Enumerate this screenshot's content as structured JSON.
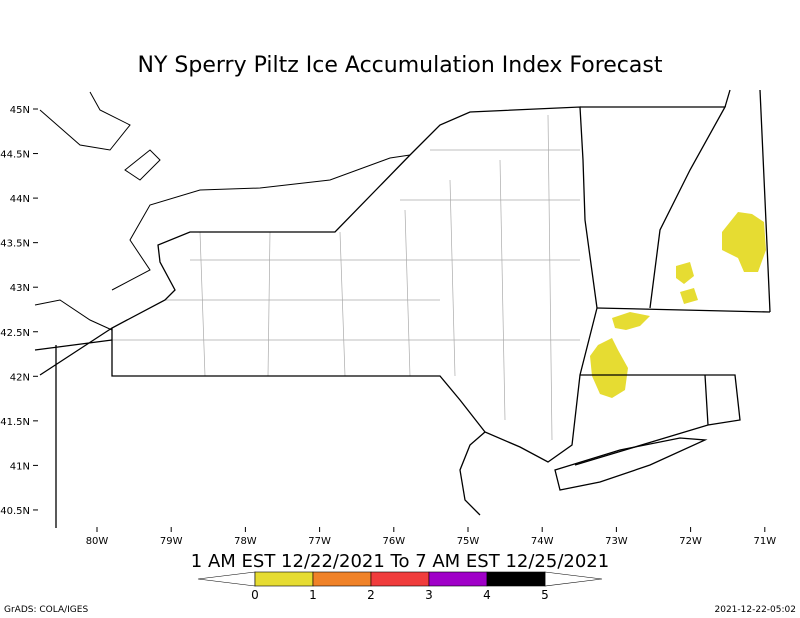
{
  "title": "NY Sperry Piltz Ice Accumulation Index Forecast",
  "subtitle": "1 AM EST 12/22/2021 To 7 AM EST 12/25/2021",
  "lat_ticks": [
    {
      "value": 45,
      "label": "45N"
    },
    {
      "value": 44.5,
      "label": "44.5N"
    },
    {
      "value": 44,
      "label": "44N"
    },
    {
      "value": 43.5,
      "label": "43.5N"
    },
    {
      "value": 43,
      "label": "43N"
    },
    {
      "value": 42.5,
      "label": "42.5N"
    },
    {
      "value": 42,
      "label": "42N"
    },
    {
      "value": 41.5,
      "label": "41.5N"
    },
    {
      "value": 41,
      "label": "41N"
    },
    {
      "value": 40.5,
      "label": "40.5N"
    }
  ],
  "lon_ticks": [
    {
      "value": -80,
      "label": "80W"
    },
    {
      "value": -79,
      "label": "79W"
    },
    {
      "value": -78,
      "label": "78W"
    },
    {
      "value": -77,
      "label": "77W"
    },
    {
      "value": -76,
      "label": "76W"
    },
    {
      "value": -75,
      "label": "75W"
    },
    {
      "value": -74,
      "label": "74W"
    },
    {
      "value": -73,
      "label": "73W"
    },
    {
      "value": -72,
      "label": "72W"
    },
    {
      "value": -71,
      "label": "71W"
    }
  ],
  "legend": {
    "levels": [
      0,
      1,
      2,
      3,
      4,
      5
    ],
    "colors": [
      "#e6dc32",
      "#f08228",
      "#f03c3c",
      "#a000c8",
      "#000000"
    ]
  },
  "footer": {
    "left": "GrADS: COLA/IGES",
    "right": "2021-12-22-05:02"
  }
}
